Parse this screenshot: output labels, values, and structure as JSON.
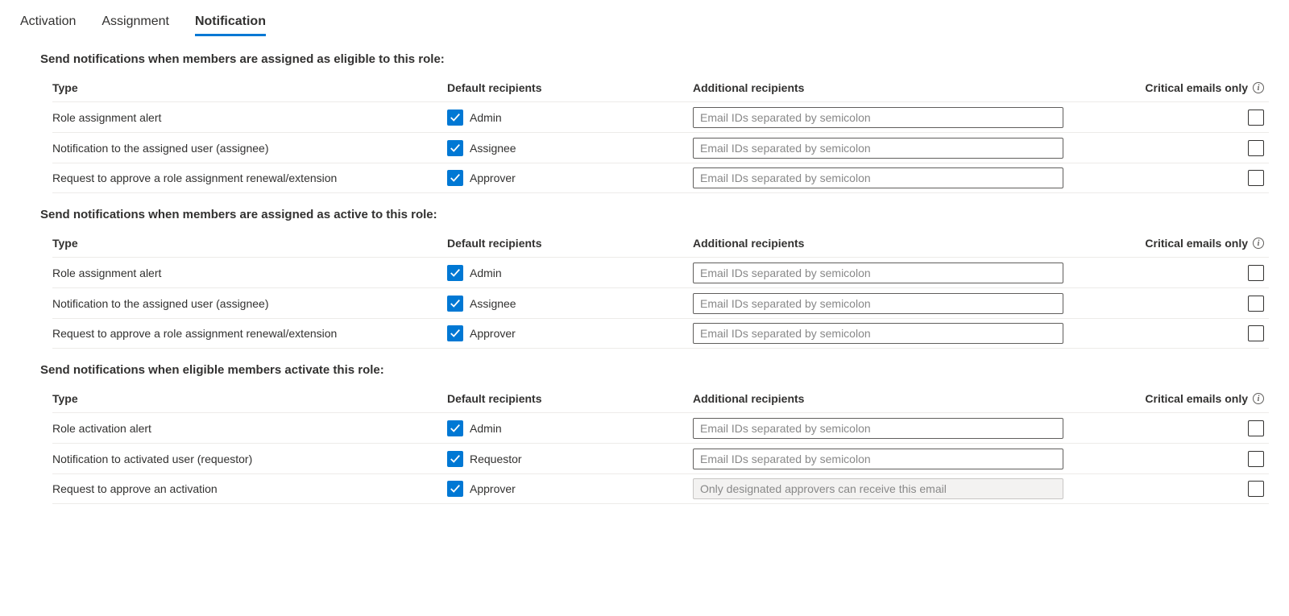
{
  "tabs": {
    "items": [
      "Activation",
      "Assignment",
      "Notification"
    ],
    "active_index": 2
  },
  "headers": {
    "type": "Type",
    "default_recipients": "Default recipients",
    "additional_recipients": "Additional recipients",
    "critical_only": "Critical emails only"
  },
  "placeholder": "Email IDs separated by semicolon",
  "disabled_placeholder": "Only designated approvers can receive this email",
  "sections": [
    {
      "heading": "Send notifications when members are assigned as eligible to this role:",
      "rows": [
        {
          "type": "Role assignment alert",
          "default_checked": true,
          "default_label": "Admin",
          "add_enabled": true,
          "add_value": "",
          "crit_checked": false
        },
        {
          "type": "Notification to the assigned user (assignee)",
          "default_checked": true,
          "default_label": "Assignee",
          "add_enabled": true,
          "add_value": "",
          "crit_checked": false
        },
        {
          "type": "Request to approve a role assignment renewal/extension",
          "default_checked": true,
          "default_label": "Approver",
          "add_enabled": true,
          "add_value": "",
          "crit_checked": false
        }
      ]
    },
    {
      "heading": "Send notifications when members are assigned as active to this role:",
      "rows": [
        {
          "type": "Role assignment alert",
          "default_checked": true,
          "default_label": "Admin",
          "add_enabled": true,
          "add_value": "",
          "crit_checked": false
        },
        {
          "type": "Notification to the assigned user (assignee)",
          "default_checked": true,
          "default_label": "Assignee",
          "add_enabled": true,
          "add_value": "",
          "crit_checked": false
        },
        {
          "type": "Request to approve a role assignment renewal/extension",
          "default_checked": true,
          "default_label": "Approver",
          "add_enabled": true,
          "add_value": "",
          "crit_checked": false
        }
      ]
    },
    {
      "heading": "Send notifications when eligible members activate this role:",
      "rows": [
        {
          "type": "Role activation alert",
          "default_checked": true,
          "default_label": "Admin",
          "add_enabled": true,
          "add_value": "",
          "crit_checked": false
        },
        {
          "type": "Notification to activated user (requestor)",
          "default_checked": true,
          "default_label": "Requestor",
          "add_enabled": true,
          "add_value": "",
          "crit_checked": false
        },
        {
          "type": "Request to approve an activation",
          "default_checked": true,
          "default_label": "Approver",
          "add_enabled": false,
          "add_value": "",
          "crit_checked": false
        }
      ]
    }
  ]
}
